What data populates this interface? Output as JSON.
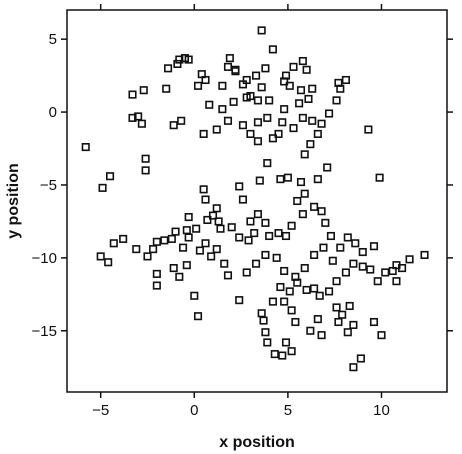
{
  "chart_data": {
    "type": "scatter",
    "title": "",
    "xlabel": "x position",
    "ylabel": "y position",
    "xlim": [
      -6.8,
      13.5
    ],
    "ylim": [
      -19.2,
      7.0
    ],
    "xticks": [
      -5,
      0,
      5,
      10
    ],
    "yticks": [
      5,
      0,
      -5,
      -10,
      -15
    ],
    "xtick_labels": [
      "−5",
      "0",
      "5",
      "10"
    ],
    "ytick_labels": [
      "5",
      "0",
      "−5",
      "−10",
      "−15"
    ],
    "grid": false,
    "legend": "none",
    "marker": "open-square",
    "colors": {
      "marker_stroke": "#111111",
      "axis": "#111111",
      "background": "#ffffff"
    },
    "series": [
      {
        "points": [
          [
            -5.8,
            -2.4
          ],
          [
            -4.5,
            -4.4
          ],
          [
            -4.9,
            -5.2
          ],
          [
            -2.6,
            -3.2
          ],
          [
            -2.6,
            -4.0
          ],
          [
            -3.0,
            -0.3
          ],
          [
            -3.3,
            -0.4
          ],
          [
            -2.8,
            -0.8
          ],
          [
            -3.3,
            1.2
          ],
          [
            -2.7,
            1.5
          ],
          [
            -1.5,
            1.6
          ],
          [
            -1.4,
            3.0
          ],
          [
            -0.9,
            3.3
          ],
          [
            -0.8,
            3.6
          ],
          [
            -0.5,
            3.7
          ],
          [
            -0.3,
            3.6
          ],
          [
            0.4,
            2.6
          ],
          [
            0.6,
            2.2
          ],
          [
            0.2,
            1.8
          ],
          [
            0.8,
            0.5
          ],
          [
            -1.1,
            -0.9
          ],
          [
            -0.7,
            -0.6
          ],
          [
            0.5,
            -1.5
          ],
          [
            1.2,
            -1.2
          ],
          [
            1.8,
            -0.6
          ],
          [
            1.5,
            0.2
          ],
          [
            2.1,
            0.7
          ],
          [
            2.8,
            1.0
          ],
          [
            1.5,
            1.8
          ],
          [
            1.8,
            3.1
          ],
          [
            1.9,
            3.7
          ],
          [
            2.2,
            2.9
          ],
          [
            2.6,
            1.9
          ],
          [
            2.2,
            2.8
          ],
          [
            2.8,
            2.2
          ],
          [
            3.0,
            1.1
          ],
          [
            3.4,
            0.8
          ],
          [
            2.6,
            -0.9
          ],
          [
            3.0,
            -1.5
          ],
          [
            3.4,
            -2.0
          ],
          [
            3.4,
            -0.7
          ],
          [
            3.9,
            -0.4
          ],
          [
            4.0,
            0.8
          ],
          [
            3.6,
            1.7
          ],
          [
            3.3,
            2.5
          ],
          [
            3.8,
            3.0
          ],
          [
            4.2,
            4.3
          ],
          [
            3.6,
            5.6
          ],
          [
            4.8,
            2.1
          ],
          [
            4.9,
            2.5
          ],
          [
            5.1,
            1.8
          ],
          [
            4.8,
            0.2
          ],
          [
            4.7,
            -0.7
          ],
          [
            4.5,
            -1.5
          ],
          [
            4.2,
            -1.8
          ],
          [
            5.3,
            -1.1
          ],
          [
            5.8,
            -0.4
          ],
          [
            5.6,
            0.6
          ],
          [
            5.7,
            1.5
          ],
          [
            5.3,
            3.1
          ],
          [
            5.8,
            3.5
          ],
          [
            6.0,
            2.9
          ],
          [
            6.3,
            1.6
          ],
          [
            6.1,
            0.9
          ],
          [
            6.3,
            -0.6
          ],
          [
            6.6,
            -1.5
          ],
          [
            6.8,
            -0.8
          ],
          [
            7.2,
            -0.1
          ],
          [
            7.6,
            0.8
          ],
          [
            7.8,
            1.6
          ],
          [
            7.7,
            2.0
          ],
          [
            8.1,
            2.2
          ],
          [
            9.3,
            -1.2
          ],
          [
            6.2,
            -2.2
          ],
          [
            5.9,
            -2.9
          ],
          [
            7.1,
            -3.8
          ],
          [
            6.6,
            -4.6
          ],
          [
            5.7,
            -4.8
          ],
          [
            5.0,
            -4.5
          ],
          [
            4.6,
            -4.6
          ],
          [
            3.9,
            -3.5
          ],
          [
            3.5,
            -4.7
          ],
          [
            2.4,
            -5.1
          ],
          [
            2.6,
            -6.0
          ],
          [
            0.5,
            -5.3
          ],
          [
            0.6,
            -6.0
          ],
          [
            1.2,
            -6.6
          ],
          [
            1.0,
            -7.1
          ],
          [
            0.7,
            -7.4
          ],
          [
            -0.3,
            -7.2
          ],
          [
            -0.3,
            -8.6
          ],
          [
            -1.0,
            -8.2
          ],
          [
            -1.2,
            -8.7
          ],
          [
            -1.6,
            -8.8
          ],
          [
            -2.0,
            -8.9
          ],
          [
            -2.2,
            -9.4
          ],
          [
            -2.5,
            -9.9
          ],
          [
            -3.1,
            -9.4
          ],
          [
            -3.8,
            -8.7
          ],
          [
            -4.3,
            -9.0
          ],
          [
            -4.6,
            -10.3
          ],
          [
            -5.0,
            -9.9
          ],
          [
            -2.0,
            -11.1
          ],
          [
            -2.0,
            -11.9
          ],
          [
            -1.1,
            -10.7
          ],
          [
            -0.8,
            -11.3
          ],
          [
            -0.4,
            -10.5
          ],
          [
            -0.6,
            -9.3
          ],
          [
            0.3,
            -9.5
          ],
          [
            0.6,
            -9.0
          ],
          [
            1.2,
            -9.4
          ],
          [
            0.9,
            -9.9
          ],
          [
            1.6,
            -10.4
          ],
          [
            1.8,
            -11.2
          ],
          [
            1.4,
            -8.0
          ],
          [
            2.0,
            -7.9
          ],
          [
            2.4,
            -8.6
          ],
          [
            2.9,
            -8.8
          ],
          [
            3.2,
            -8.3
          ],
          [
            3.0,
            -7.5
          ],
          [
            3.4,
            -7.0
          ],
          [
            3.8,
            -7.6
          ],
          [
            4.0,
            -8.5
          ],
          [
            4.5,
            -8.3
          ],
          [
            4.9,
            -8.5
          ],
          [
            5.2,
            -7.8
          ],
          [
            5.8,
            -7.0
          ],
          [
            5.5,
            -6.1
          ],
          [
            5.9,
            -5.6
          ],
          [
            6.4,
            -6.5
          ],
          [
            6.8,
            -6.8
          ],
          [
            7.0,
            -7.6
          ],
          [
            7.3,
            -8.5
          ],
          [
            6.9,
            -9.3
          ],
          [
            6.4,
            -9.8
          ],
          [
            5.9,
            -10.7
          ],
          [
            5.4,
            -11.3
          ],
          [
            4.8,
            -10.9
          ],
          [
            4.4,
            -10.0
          ],
          [
            3.8,
            -9.8
          ],
          [
            3.3,
            -10.4
          ],
          [
            2.8,
            -11.0
          ],
          [
            2.4,
            -12.9
          ],
          [
            3.6,
            -13.8
          ],
          [
            4.2,
            -13.0
          ],
          [
            4.6,
            -12.0
          ],
          [
            5.1,
            -12.3
          ],
          [
            5.5,
            -11.7
          ],
          [
            6.0,
            -12.2
          ],
          [
            6.4,
            -12.1
          ],
          [
            6.7,
            -12.6
          ],
          [
            7.2,
            -12.3
          ],
          [
            7.6,
            -11.6
          ],
          [
            8.1,
            -11.0
          ],
          [
            8.5,
            -10.4
          ],
          [
            9.0,
            -10.6
          ],
          [
            9.4,
            -10.8
          ],
          [
            9.8,
            -11.6
          ],
          [
            10.2,
            -11.0
          ],
          [
            10.6,
            -10.9
          ],
          [
            11.1,
            -10.7
          ],
          [
            11.5,
            -10.1
          ],
          [
            12.3,
            -9.8
          ],
          [
            10.8,
            -10.5
          ],
          [
            9.6,
            -9.2
          ],
          [
            9.0,
            -9.6
          ],
          [
            8.6,
            -9.0
          ],
          [
            8.2,
            -8.6
          ],
          [
            7.8,
            -9.3
          ],
          [
            7.4,
            -10.2
          ],
          [
            7.9,
            -13.9
          ],
          [
            8.3,
            -13.3
          ],
          [
            8.5,
            -14.6
          ],
          [
            8.2,
            -15.1
          ],
          [
            7.7,
            -14.4
          ],
          [
            8.9,
            -16.9
          ],
          [
            8.5,
            -17.5
          ],
          [
            9.6,
            -14.4
          ],
          [
            10.0,
            -15.3
          ],
          [
            10.8,
            -11.6
          ],
          [
            9.9,
            -4.5
          ],
          [
            3.7,
            -14.3
          ],
          [
            3.8,
            -15.1
          ],
          [
            3.9,
            -15.8
          ],
          [
            4.7,
            -16.7
          ],
          [
            5.2,
            -16.4
          ],
          [
            4.9,
            -15.8
          ],
          [
            4.3,
            -16.6
          ],
          [
            5.4,
            -14.4
          ],
          [
            6.2,
            -15.0
          ],
          [
            6.8,
            -15.3
          ],
          [
            6.6,
            -14.2
          ],
          [
            7.6,
            -13.4
          ],
          [
            5.2,
            -13.6
          ],
          [
            4.8,
            -13.0
          ],
          [
            0.0,
            -12.6
          ],
          [
            0.2,
            -14.0
          ],
          [
            -0.4,
            -8.1
          ],
          [
            0.1,
            -8.0
          ],
          [
            1.3,
            -7.5
          ]
        ]
      }
    ]
  }
}
